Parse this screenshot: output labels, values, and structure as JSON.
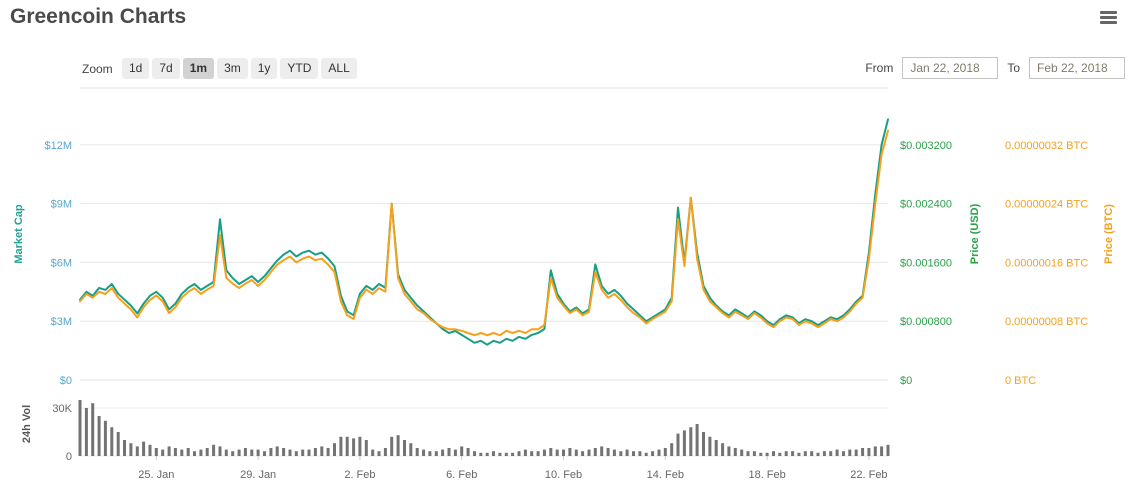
{
  "header": {
    "title": "Greencoin Charts"
  },
  "controls": {
    "zoom_label": "Zoom",
    "zoom_buttons": [
      {
        "label": "1d",
        "selected": false
      },
      {
        "label": "7d",
        "selected": false
      },
      {
        "label": "1m",
        "selected": true
      },
      {
        "label": "3m",
        "selected": false
      },
      {
        "label": "1y",
        "selected": false
      },
      {
        "label": "YTD",
        "selected": false
      },
      {
        "label": "ALL",
        "selected": false
      }
    ],
    "from_label": "From",
    "from_value": "Jan 22, 2018",
    "to_label": "To",
    "to_value": "Feb 22, 2018"
  },
  "chart_data": {
    "type": "line",
    "title": "Greencoin Charts",
    "date_range": {
      "from": "Jan 22, 2018",
      "to": "Feb 22, 2018"
    },
    "points_per_day": 4,
    "x_axis": {
      "tick_labels": [
        "25. Jan",
        "29. Jan",
        "2. Feb",
        "6. Feb",
        "10. Feb",
        "14. Feb",
        "18. Feb",
        "22. Feb"
      ],
      "tick_days": [
        3,
        7,
        11,
        15,
        19,
        23,
        27,
        31
      ],
      "label_color": "#666666"
    },
    "axes": {
      "market_cap": {
        "title": "Market Cap",
        "title_color": "#1fa394",
        "tick_color": "#58a7cb",
        "tick_labels": [
          "$12M",
          "$9M",
          "$6M",
          "$3M",
          "$0"
        ],
        "tick_values": [
          12,
          9,
          6,
          3,
          0
        ],
        "max": 14.9,
        "unit": "million USD"
      },
      "price_usd": {
        "title": "Price (USD)",
        "color": "#2aa14b",
        "tick_labels": [
          "$0.003200",
          "$0.002400",
          "$0.001600",
          "$0.000800",
          "$0"
        ]
      },
      "price_btc": {
        "title": "Price (BTC)",
        "color": "#f7a01c",
        "tick_labels": [
          "0.00000032 BTC",
          "0.00000024 BTC",
          "0.00000016 BTC",
          "0.00000008 BTC",
          "0 BTC"
        ],
        "tick_values": [
          0.32,
          0.24,
          0.16,
          0.08,
          0
        ],
        "max": 0.3973,
        "unit": "µBTC"
      },
      "volume": {
        "title": "24h Vol",
        "title_color": "#555555",
        "tick_color": "#666666",
        "tick_labels": [
          "30K",
          "0"
        ],
        "tick_values": [
          30,
          0
        ],
        "max": 40,
        "unit": "thousand"
      }
    },
    "series": [
      {
        "name": "Market Cap",
        "type": "line",
        "color": "#169f86",
        "axis": "market_cap",
        "values": [
          4.1,
          4.5,
          4.3,
          4.7,
          4.6,
          4.9,
          4.4,
          4.1,
          3.8,
          3.4,
          3.9,
          4.3,
          4.5,
          4.2,
          3.6,
          3.9,
          4.4,
          4.7,
          4.9,
          4.6,
          4.8,
          5.0,
          8.2,
          5.6,
          5.2,
          4.9,
          5.1,
          5.3,
          5.0,
          5.3,
          5.7,
          6.1,
          6.4,
          6.6,
          6.3,
          6.5,
          6.6,
          6.4,
          6.5,
          6.2,
          5.8,
          4.3,
          3.5,
          3.3,
          4.4,
          4.8,
          4.6,
          4.9,
          4.7,
          9.0,
          5.4,
          4.6,
          4.2,
          3.8,
          3.5,
          3.2,
          2.9,
          2.6,
          2.4,
          2.5,
          2.3,
          2.1,
          1.9,
          2.0,
          1.8,
          2.0,
          1.9,
          2.1,
          2.0,
          2.2,
          2.1,
          2.3,
          2.4,
          2.6,
          5.6,
          4.4,
          3.9,
          3.5,
          3.7,
          3.4,
          3.6,
          5.9,
          4.8,
          4.4,
          4.6,
          4.3,
          3.9,
          3.6,
          3.3,
          3.0,
          3.2,
          3.4,
          3.6,
          4.2,
          8.8,
          6.0,
          9.3,
          6.5,
          4.8,
          4.2,
          3.8,
          3.5,
          3.3,
          3.6,
          3.4,
          3.2,
          3.5,
          3.3,
          3.0,
          2.8,
          3.1,
          3.3,
          3.2,
          2.9,
          3.1,
          3.0,
          2.8,
          3.0,
          3.2,
          3.1,
          3.3,
          3.6,
          4.0,
          4.3,
          6.5,
          9.5,
          12.0,
          13.3
        ]
      },
      {
        "name": "Price (BTC)",
        "type": "line",
        "color": "#f7a01c",
        "axis": "price_btc",
        "values": [
          0.107,
          0.117,
          0.112,
          0.12,
          0.117,
          0.125,
          0.112,
          0.104,
          0.096,
          0.085,
          0.099,
          0.109,
          0.115,
          0.107,
          0.091,
          0.099,
          0.112,
          0.12,
          0.125,
          0.117,
          0.123,
          0.128,
          0.197,
          0.139,
          0.131,
          0.125,
          0.131,
          0.136,
          0.128,
          0.136,
          0.147,
          0.157,
          0.163,
          0.168,
          0.16,
          0.165,
          0.168,
          0.163,
          0.165,
          0.157,
          0.147,
          0.107,
          0.088,
          0.083,
          0.112,
          0.123,
          0.117,
          0.125,
          0.12,
          0.24,
          0.139,
          0.117,
          0.107,
          0.096,
          0.091,
          0.083,
          0.077,
          0.072,
          0.069,
          0.069,
          0.067,
          0.064,
          0.061,
          0.064,
          0.061,
          0.064,
          0.061,
          0.067,
          0.064,
          0.067,
          0.064,
          0.069,
          0.069,
          0.075,
          0.139,
          0.112,
          0.101,
          0.091,
          0.096,
          0.088,
          0.093,
          0.147,
          0.123,
          0.112,
          0.117,
          0.109,
          0.099,
          0.091,
          0.085,
          0.077,
          0.083,
          0.088,
          0.093,
          0.107,
          0.219,
          0.155,
          0.248,
          0.165,
          0.123,
          0.107,
          0.099,
          0.091,
          0.085,
          0.093,
          0.088,
          0.083,
          0.091,
          0.085,
          0.077,
          0.072,
          0.08,
          0.085,
          0.083,
          0.075,
          0.08,
          0.077,
          0.072,
          0.077,
          0.083,
          0.08,
          0.085,
          0.093,
          0.104,
          0.112,
          0.165,
          0.24,
          0.307,
          0.339
        ]
      },
      {
        "name": "24h Volume",
        "type": "bar",
        "color": "#737373",
        "axis": "volume",
        "values": [
          35,
          30,
          33,
          25,
          22,
          18,
          15,
          10,
          8,
          6,
          9,
          7,
          5,
          4,
          6,
          5,
          4,
          5,
          3,
          4,
          5,
          7,
          6,
          4,
          3,
          4,
          5,
          4,
          4,
          3,
          5,
          6,
          5,
          4,
          3,
          4,
          4,
          5,
          6,
          5,
          8,
          12,
          12,
          11,
          12,
          10,
          4,
          3,
          5,
          12,
          13,
          10,
          8,
          5,
          4,
          3,
          3,
          4,
          5,
          4,
          6,
          5,
          3,
          2,
          2,
          3,
          2,
          2,
          2,
          3,
          4,
          3,
          3,
          4,
          5,
          4,
          4,
          5,
          4,
          3,
          4,
          5,
          6,
          5,
          4,
          3,
          4,
          3,
          3,
          2,
          3,
          4,
          5,
          8,
          14,
          16,
          18,
          20,
          15,
          12,
          10,
          8,
          6,
          5,
          4,
          3,
          3,
          2,
          2,
          3,
          2,
          3,
          3,
          2,
          3,
          3,
          2,
          3,
          3,
          4,
          3,
          4,
          4,
          5,
          5,
          6,
          6,
          7
        ]
      }
    ]
  }
}
